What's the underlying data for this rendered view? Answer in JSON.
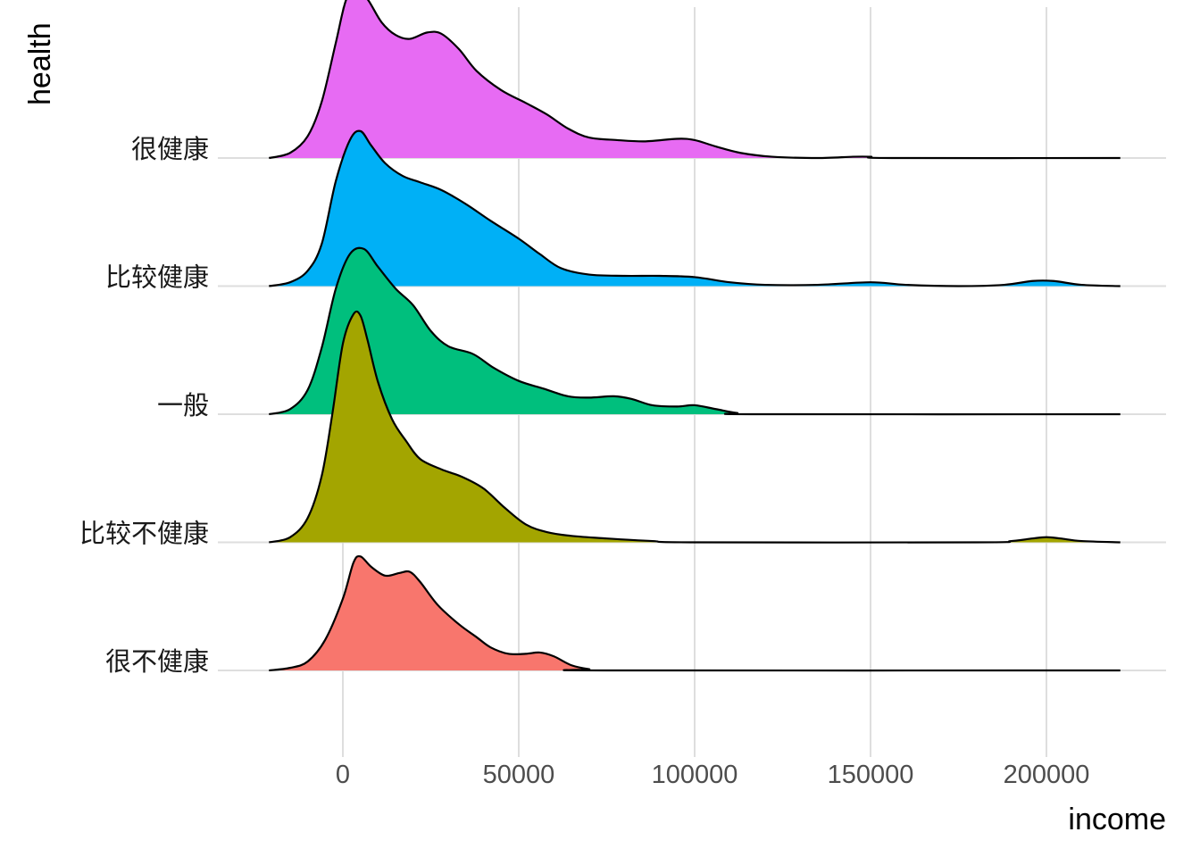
{
  "chart_data": {
    "type": "ridgeline",
    "title": "",
    "xlabel": "income",
    "ylabel": "health",
    "xlim": [
      -21000,
      221000
    ],
    "x_ticks": [
      0,
      50000,
      100000,
      150000,
      200000
    ],
    "x_tick_labels": [
      "0",
      "50000",
      "100000",
      "150000",
      "200000"
    ],
    "categories": [
      "很不健康",
      "比较不健康",
      "一般",
      "比较健康",
      "很健康"
    ],
    "grid": true,
    "legend": "none",
    "series": [
      {
        "name": "很不健康",
        "color": "#F8766D",
        "points": [
          [
            -21000,
            0.0
          ],
          [
            -15000,
            0.02
          ],
          [
            -10000,
            0.07
          ],
          [
            -5000,
            0.24
          ],
          [
            0,
            0.56
          ],
          [
            3000,
            0.84
          ],
          [
            5000,
            0.89
          ],
          [
            8000,
            0.81
          ],
          [
            12000,
            0.74
          ],
          [
            16000,
            0.76
          ],
          [
            19000,
            0.77
          ],
          [
            22000,
            0.69
          ],
          [
            27000,
            0.51
          ],
          [
            33000,
            0.36
          ],
          [
            38000,
            0.26
          ],
          [
            42000,
            0.18
          ],
          [
            47000,
            0.13
          ],
          [
            52000,
            0.13
          ],
          [
            56000,
            0.14
          ],
          [
            60000,
            0.11
          ],
          [
            65000,
            0.04
          ],
          [
            70000,
            0.01
          ],
          [
            75000,
            0.0
          ],
          [
            221000,
            0.0
          ]
        ]
      },
      {
        "name": "比较不健康",
        "color": "#A3A500",
        "points": [
          [
            -21000,
            0.0
          ],
          [
            -15000,
            0.04
          ],
          [
            -10000,
            0.19
          ],
          [
            -6000,
            0.52
          ],
          [
            -3000,
            1.0
          ],
          [
            0,
            1.55
          ],
          [
            3000,
            1.78
          ],
          [
            5000,
            1.77
          ],
          [
            7000,
            1.58
          ],
          [
            10000,
            1.25
          ],
          [
            14000,
            0.96
          ],
          [
            18000,
            0.79
          ],
          [
            22000,
            0.65
          ],
          [
            28000,
            0.57
          ],
          [
            34000,
            0.51
          ],
          [
            40000,
            0.42
          ],
          [
            46000,
            0.27
          ],
          [
            52000,
            0.14
          ],
          [
            58000,
            0.08
          ],
          [
            65000,
            0.05
          ],
          [
            75000,
            0.03
          ],
          [
            88000,
            0.01
          ],
          [
            100000,
            0.0
          ],
          [
            180000,
            0.0
          ],
          [
            190000,
            0.01
          ],
          [
            196000,
            0.03
          ],
          [
            200000,
            0.04
          ],
          [
            204000,
            0.03
          ],
          [
            210000,
            0.01
          ],
          [
            221000,
            0.0
          ]
        ]
      },
      {
        "name": "一般",
        "color": "#00BF7D",
        "points": [
          [
            -21000,
            0.0
          ],
          [
            -15000,
            0.04
          ],
          [
            -10000,
            0.19
          ],
          [
            -6000,
            0.52
          ],
          [
            -2000,
            0.98
          ],
          [
            2000,
            1.25
          ],
          [
            6000,
            1.29
          ],
          [
            10000,
            1.15
          ],
          [
            15000,
            0.98
          ],
          [
            20000,
            0.85
          ],
          [
            25000,
            0.65
          ],
          [
            30000,
            0.53
          ],
          [
            37000,
            0.47
          ],
          [
            43000,
            0.36
          ],
          [
            50000,
            0.26
          ],
          [
            57000,
            0.2
          ],
          [
            64000,
            0.14
          ],
          [
            70000,
            0.13
          ],
          [
            77000,
            0.14
          ],
          [
            82000,
            0.12
          ],
          [
            88000,
            0.07
          ],
          [
            95000,
            0.06
          ],
          [
            100000,
            0.07
          ],
          [
            106000,
            0.04
          ],
          [
            112000,
            0.01
          ],
          [
            118000,
            0.0
          ],
          [
            221000,
            0.0
          ]
        ]
      },
      {
        "name": "比较健康",
        "color": "#00B0F6",
        "points": [
          [
            -21000,
            0.0
          ],
          [
            -15000,
            0.03
          ],
          [
            -10000,
            0.12
          ],
          [
            -6000,
            0.33
          ],
          [
            -2000,
            0.82
          ],
          [
            2000,
            1.14
          ],
          [
            5000,
            1.21
          ],
          [
            8000,
            1.1
          ],
          [
            12000,
            0.96
          ],
          [
            17000,
            0.86
          ],
          [
            22000,
            0.81
          ],
          [
            28000,
            0.75
          ],
          [
            35000,
            0.64
          ],
          [
            42000,
            0.51
          ],
          [
            50000,
            0.37
          ],
          [
            56000,
            0.25
          ],
          [
            62000,
            0.14
          ],
          [
            70000,
            0.09
          ],
          [
            80000,
            0.08
          ],
          [
            90000,
            0.08
          ],
          [
            100000,
            0.07
          ],
          [
            110000,
            0.03
          ],
          [
            120000,
            0.01
          ],
          [
            135000,
            0.01
          ],
          [
            150000,
            0.03
          ],
          [
            160000,
            0.01
          ],
          [
            175000,
            0.0
          ],
          [
            188000,
            0.01
          ],
          [
            196000,
            0.04
          ],
          [
            202000,
            0.04
          ],
          [
            210000,
            0.01
          ],
          [
            221000,
            0.0
          ]
        ]
      },
      {
        "name": "很健康",
        "color": "#E76BF3",
        "points": [
          [
            -21000,
            0.0
          ],
          [
            -15000,
            0.04
          ],
          [
            -10000,
            0.17
          ],
          [
            -6000,
            0.44
          ],
          [
            -2000,
            0.9
          ],
          [
            1000,
            1.24
          ],
          [
            4000,
            1.3
          ],
          [
            7000,
            1.24
          ],
          [
            11000,
            1.06
          ],
          [
            15000,
            0.96
          ],
          [
            19000,
            0.93
          ],
          [
            24000,
            0.98
          ],
          [
            28000,
            0.97
          ],
          [
            33000,
            0.85
          ],
          [
            38000,
            0.68
          ],
          [
            45000,
            0.53
          ],
          [
            52000,
            0.43
          ],
          [
            58000,
            0.34
          ],
          [
            64000,
            0.23
          ],
          [
            70000,
            0.16
          ],
          [
            78000,
            0.14
          ],
          [
            86000,
            0.13
          ],
          [
            95000,
            0.15
          ],
          [
            100000,
            0.14
          ],
          [
            106000,
            0.09
          ],
          [
            113000,
            0.04
          ],
          [
            122000,
            0.01
          ],
          [
            135000,
            0.0
          ],
          [
            145000,
            0.01
          ],
          [
            150000,
            0.01
          ],
          [
            156000,
            0.0
          ],
          [
            221000,
            0.0
          ]
        ]
      }
    ]
  }
}
